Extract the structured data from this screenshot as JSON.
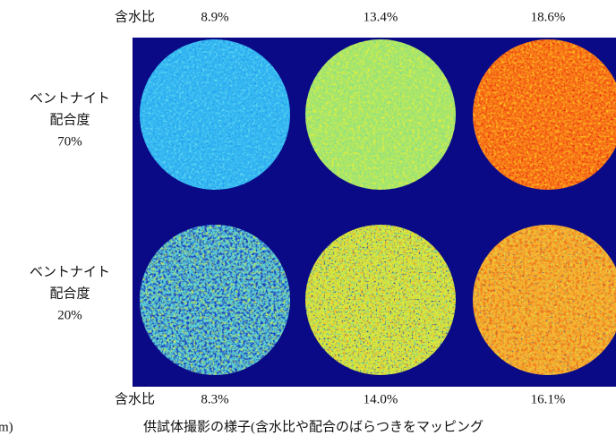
{
  "top_labels": {
    "label": "含水比",
    "values": [
      "8.9%",
      "13.4%",
      "18.6%"
    ]
  },
  "bottom_labels": {
    "label": "含水比",
    "values": [
      "8.3%",
      "14.0%",
      "16.1%"
    ]
  },
  "rows": [
    {
      "lines": [
        "ベントナイト",
        "配合度",
        "70%"
      ]
    },
    {
      "lines": [
        "ベントナイト",
        "配合度",
        "20%"
      ]
    }
  ],
  "side_fragment": "m)",
  "caption": "供試体撮影の様子(含水比や配合のばらつきをマッピング"
}
